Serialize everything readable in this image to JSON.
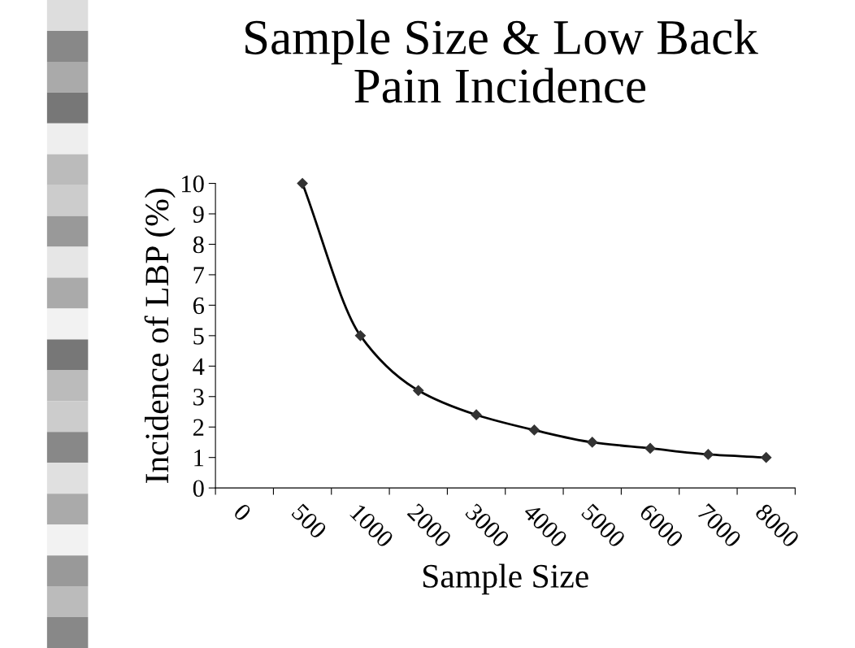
{
  "chart_data": {
    "type": "line",
    "title": "Sample Size & Low Back\nPain Incidence",
    "xlabel": "Sample Size",
    "ylabel": "Incidence of LBP (%)",
    "categories": [
      "0",
      "500",
      "1000",
      "2000",
      "3000",
      "4000",
      "5000",
      "6000",
      "7000",
      "8000"
    ],
    "series": [
      {
        "color": "#000000",
        "values": [
          null,
          10,
          5,
          3.2,
          2.4,
          1.9,
          1.5,
          1.3,
          1.1,
          1.0
        ]
      }
    ],
    "ylim": [
      0,
      10
    ],
    "yticks": [
      0,
      1,
      2,
      3,
      4,
      5,
      6,
      7,
      8,
      9,
      10
    ],
    "grid": false,
    "legend": false,
    "marker": "diamond",
    "line_style": "solid"
  }
}
